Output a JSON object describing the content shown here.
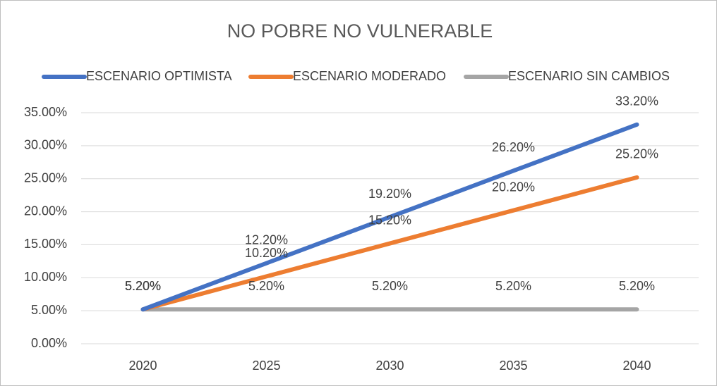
{
  "chart_data": {
    "type": "line",
    "title": "NO POBRE NO VULNERABLE",
    "categories": [
      "2020",
      "2025",
      "2030",
      "2035",
      "2040"
    ],
    "series": [
      {
        "name": "ESCENARIO OPTIMISTA",
        "color": "#4472c4",
        "values": [
          5.2,
          12.2,
          19.2,
          26.2,
          33.2
        ],
        "value_labels": [
          "5.20%",
          "12.20%",
          "19.20%",
          "26.20%",
          "33.20%"
        ]
      },
      {
        "name": "ESCENARIO MODERADO",
        "color": "#ed7d31",
        "values": [
          5.2,
          10.2,
          15.2,
          20.2,
          25.2
        ],
        "value_labels": [
          "5.20%",
          "10.20%",
          "15.20%",
          "20.20%",
          "25.20%"
        ]
      },
      {
        "name": "ESCENARIO SIN CAMBIOS",
        "color": "#a5a5a5",
        "values": [
          5.2,
          5.2,
          5.2,
          5.2,
          5.2
        ],
        "value_labels": [
          "5.20%",
          "5.20%",
          "5.20%",
          "5.20%",
          "5.20%"
        ]
      }
    ],
    "ylim": [
      0,
      35
    ],
    "yticks": [
      {
        "value": 0,
        "label": "0.00%"
      },
      {
        "value": 5,
        "label": "5.00%"
      },
      {
        "value": 10,
        "label": "10.00%"
      },
      {
        "value": 15,
        "label": "15.00%"
      },
      {
        "value": 20,
        "label": "20.00%"
      },
      {
        "value": 25,
        "label": "25.00%"
      },
      {
        "value": 30,
        "label": "30.00%"
      },
      {
        "value": 35,
        "label": "35.00%"
      }
    ],
    "grid": true,
    "legend": "top"
  }
}
